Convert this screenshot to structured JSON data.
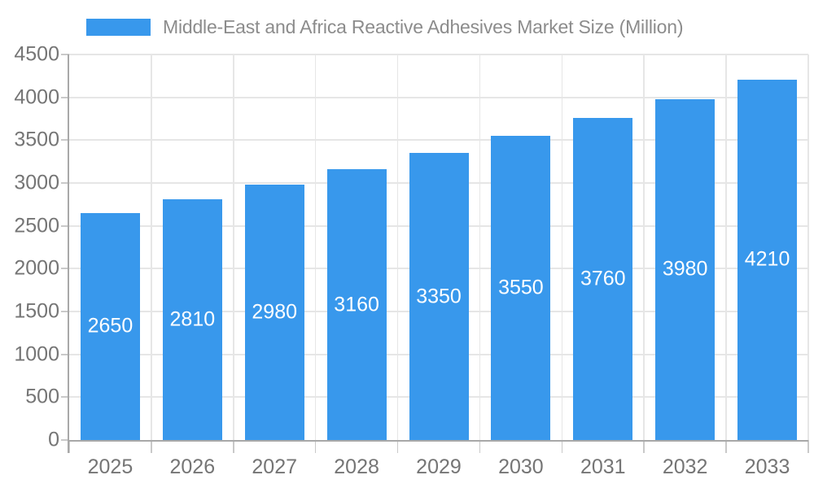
{
  "chart_data": {
    "type": "bar",
    "title": "Middle-East and Africa Reactive Adhesives Market Size (Million)",
    "legend": {
      "position": "top",
      "entries": [
        "Middle-East and Africa Reactive Adhesives Market Size (Million)"
      ]
    },
    "categories": [
      "2025",
      "2026",
      "2027",
      "2028",
      "2029",
      "2030",
      "2031",
      "2032",
      "2033"
    ],
    "series": [
      {
        "name": "Middle-East and Africa Reactive Adhesives Market Size (Million)",
        "values": [
          2650,
          2810,
          2980,
          3160,
          3350,
          3550,
          3760,
          3980,
          4210
        ]
      }
    ],
    "value_labels": [
      "2650",
      "2810",
      "2980",
      "3160",
      "3350",
      "3550",
      "3760",
      "3980",
      "4210"
    ],
    "xlabel": "",
    "ylabel": "",
    "ylim": [
      0,
      4500
    ],
    "ytick_step": 500,
    "yticks": [
      "0",
      "500",
      "1000",
      "1500",
      "2000",
      "2500",
      "3000",
      "3500",
      "4000",
      "4500"
    ],
    "grid": "on",
    "colors": {
      "bar": "#3898EC",
      "value_label": "#FFFFFF",
      "axis_text": "#757575",
      "legend_text": "#8C8C8C",
      "gridline": "#E6E6E6",
      "axis_line": "#A8A8A8",
      "tick_mark": "#C9C9C9",
      "background": "#FFFFFF"
    }
  }
}
